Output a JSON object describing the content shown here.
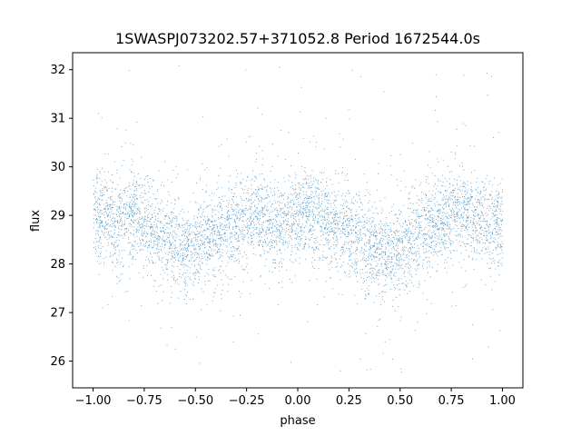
{
  "chart_data": {
    "type": "scatter",
    "title": "1SWASPJ073202.57+371052.8 Period 1672544.0s",
    "xlabel": "phase",
    "ylabel": "flux",
    "xlim": [
      -1.1,
      1.1
    ],
    "ylim": [
      25.45,
      32.35
    ],
    "xticks": [
      -1.0,
      -0.75,
      -0.5,
      -0.25,
      0.0,
      0.25,
      0.5,
      0.75,
      1.0
    ],
    "xtick_labels": [
      "−1.00",
      "−0.75",
      "−0.50",
      "−0.25",
      "0.00",
      "0.25",
      "0.50",
      "0.75",
      "1.00"
    ],
    "yticks": [
      26,
      27,
      28,
      29,
      30,
      31,
      32
    ],
    "ytick_labels": [
      "26",
      "27",
      "28",
      "29",
      "30",
      "31",
      "32"
    ],
    "grid": false,
    "marker_color": "#1f77b4",
    "series": [
      {
        "x": [
          -1.0,
          -0.95,
          -0.9,
          -0.85,
          -0.8,
          -0.75,
          -0.7,
          -0.65,
          -0.6,
          -0.55,
          -0.5,
          -0.45,
          -0.4,
          -0.35,
          -0.3,
          -0.25,
          -0.2,
          -0.15,
          -0.1,
          -0.05,
          0.0,
          0.05,
          0.1,
          0.15,
          0.2,
          0.25,
          0.3,
          0.35,
          0.4,
          0.45,
          0.5,
          0.55,
          0.6,
          0.65,
          0.7,
          0.75,
          0.8,
          0.85,
          0.9,
          0.95,
          1.0
        ],
        "y": [
          28.9,
          29.0,
          28.8,
          29.0,
          29.1,
          28.9,
          28.7,
          28.5,
          28.4,
          28.3,
          28.4,
          28.5,
          28.6,
          28.7,
          28.8,
          28.9,
          29.0,
          28.9,
          28.8,
          28.9,
          29.0,
          29.1,
          29.0,
          28.9,
          28.8,
          28.7,
          28.5,
          28.4,
          28.3,
          28.2,
          28.3,
          28.5,
          28.7,
          28.8,
          28.9,
          29.0,
          29.1,
          29.0,
          28.9,
          28.8,
          28.9
        ]
      }
    ]
  }
}
